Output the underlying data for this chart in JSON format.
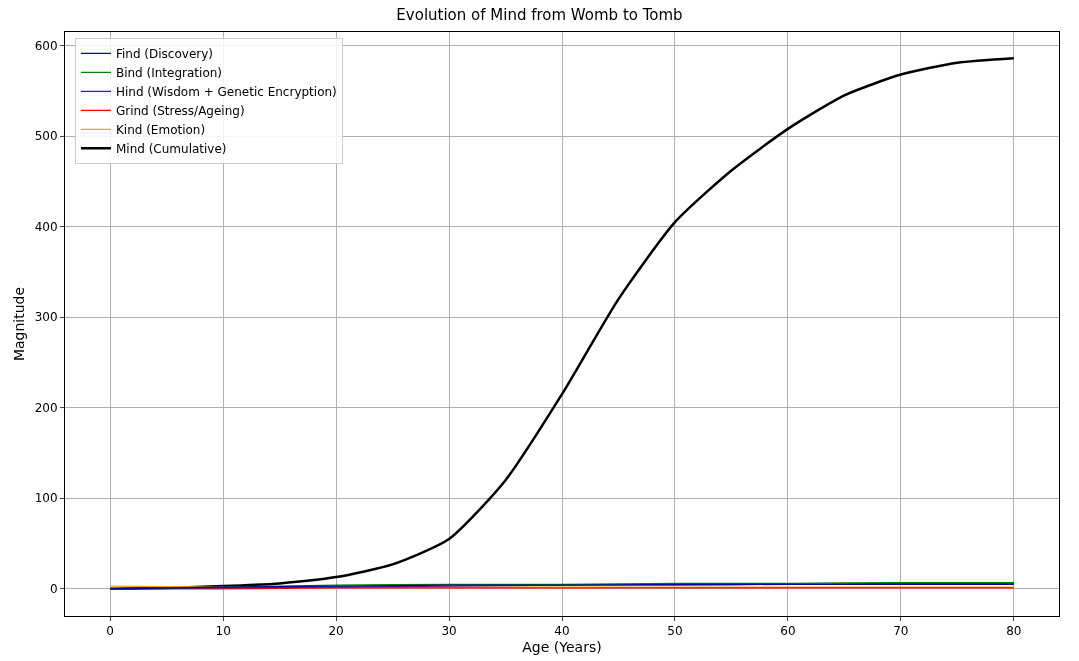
{
  "chart_data": {
    "type": "line",
    "title": "Evolution of Mind from Womb to Tomb",
    "xlabel": "Age (Years)",
    "ylabel": "Magnitude",
    "x": [
      0,
      10,
      20,
      30,
      40,
      50,
      60,
      70,
      80
    ],
    "series": [
      {
        "name": "Find (Discovery)",
        "color": "#0000aa",
        "values": [
          0,
          2,
          3,
          4,
          4,
          5,
          5,
          5,
          5
        ]
      },
      {
        "name": "Bind (Integration)",
        "color": "#008000",
        "values": [
          0,
          2,
          4,
          5,
          5,
          6,
          6,
          7,
          7
        ]
      },
      {
        "name": "Hind (Wisdom + Genetic Encryption)",
        "color": "#800080",
        "values": [
          0,
          1,
          2,
          3,
          4,
          4,
          5,
          6,
          6
        ]
      },
      {
        "name": "Grind (Stress/Ageing)",
        "color": "#ff0000",
        "values": [
          0,
          0,
          1,
          1,
          1,
          1,
          1,
          1,
          1
        ]
      },
      {
        "name": "Kind (Emotion)",
        "color": "#ffa500",
        "values": [
          3,
          2,
          2,
          2,
          2,
          2,
          2,
          2,
          2
        ]
      },
      {
        "name": "Mind (Cumulative)",
        "color": "#000000",
        "x": [
          0,
          5,
          10,
          15,
          20,
          25,
          30,
          35,
          40,
          45,
          50,
          55,
          60,
          65,
          70,
          75,
          80
        ],
        "values": [
          0,
          1,
          3,
          6,
          13,
          27,
          55,
          120,
          215,
          320,
          405,
          462,
          508,
          545,
          568,
          581,
          586
        ]
      }
    ],
    "xlim": [
      -4,
      84
    ],
    "ylim": [
      -30,
      615
    ],
    "xticks": [
      0,
      10,
      20,
      30,
      40,
      50,
      60,
      70,
      80
    ],
    "yticks": [
      0,
      100,
      200,
      300,
      400,
      500,
      600
    ],
    "grid": true,
    "legend": "top left",
    "marker": "none",
    "line_style": "solid"
  }
}
